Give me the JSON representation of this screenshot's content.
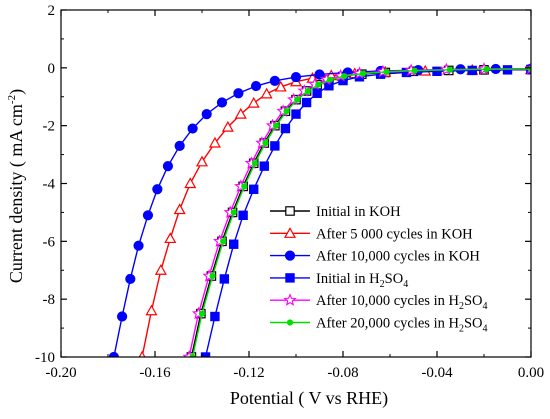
{
  "chart_data": {
    "type": "line",
    "xlabel": "Potential ( V vs RHE)",
    "ylabel": "Current density ( mA cm",
    "ylabel_sup": "-2",
    "ylabel_close": ")",
    "xlim": [
      -0.2,
      0.0
    ],
    "ylim": [
      -10,
      2
    ],
    "x_ticks": [
      -0.2,
      -0.16,
      -0.12,
      -0.08,
      -0.04,
      0.0
    ],
    "x_tick_labels": [
      "-0.20",
      "-0.16",
      "-0.12",
      "-0.08",
      "-0.04",
      "0.00"
    ],
    "y_ticks": [
      2,
      0,
      -2,
      -4,
      -6,
      -8,
      -10
    ],
    "y_tick_labels": [
      "2",
      "0",
      "-2",
      "-4",
      "-6",
      "-8",
      "-10"
    ],
    "grid": false,
    "legend_position": "bottom-right",
    "series": [
      {
        "name": "Initial in KOH",
        "color": "#000000",
        "marker": "open-square",
        "x": [
          -0.1445,
          -0.1405,
          -0.136,
          -0.1315,
          -0.127,
          -0.1225,
          -0.118,
          -0.1135,
          -0.109,
          -0.1045,
          -0.1,
          -0.0955,
          -0.091,
          -0.086,
          -0.08,
          -0.072,
          -0.062,
          -0.05,
          -0.035,
          -0.02,
          0.0
        ],
        "y": [
          -10.0,
          -8.5,
          -7.2,
          -6.0,
          -5.0,
          -4.1,
          -3.3,
          -2.6,
          -2.0,
          -1.5,
          -1.1,
          -0.8,
          -0.58,
          -0.42,
          -0.3,
          -0.22,
          -0.16,
          -0.12,
          -0.09,
          -0.07,
          -0.06
        ]
      },
      {
        "name": "After 5 000 cycles in KOH",
        "color": "#ff0000",
        "marker": "open-triangle",
        "x": [
          -0.1655,
          -0.1615,
          -0.1575,
          -0.1535,
          -0.1495,
          -0.145,
          -0.14,
          -0.1345,
          -0.129,
          -0.1235,
          -0.118,
          -0.1125,
          -0.1065,
          -0.1,
          -0.093,
          -0.085,
          -0.075,
          -0.062,
          -0.045,
          -0.025,
          0.0
        ],
        "y": [
          -10.0,
          -8.4,
          -7.0,
          -5.9,
          -4.9,
          -4.0,
          -3.25,
          -2.6,
          -2.05,
          -1.6,
          -1.22,
          -0.9,
          -0.66,
          -0.48,
          -0.36,
          -0.27,
          -0.2,
          -0.15,
          -0.11,
          -0.08,
          -0.06
        ]
      },
      {
        "name": "After 10,000 cycles in KOH",
        "color": "#0000ff",
        "marker": "filled-circle",
        "x": [
          -0.1775,
          -0.174,
          -0.1705,
          -0.167,
          -0.163,
          -0.159,
          -0.1545,
          -0.1495,
          -0.144,
          -0.138,
          -0.1315,
          -0.1245,
          -0.117,
          -0.109,
          -0.1,
          -0.09,
          -0.078,
          -0.064,
          -0.048,
          -0.03,
          -0.015,
          0.0
        ],
        "y": [
          -10.0,
          -8.6,
          -7.3,
          -6.15,
          -5.1,
          -4.2,
          -3.4,
          -2.7,
          -2.1,
          -1.6,
          -1.2,
          -0.88,
          -0.63,
          -0.45,
          -0.32,
          -0.23,
          -0.16,
          -0.11,
          -0.08,
          -0.05,
          -0.04,
          -0.03
        ]
      },
      {
        "name": "Initial in H2SO4",
        "color": "#0000ff",
        "marker": "filled-square",
        "x": [
          -0.1385,
          -0.1345,
          -0.1305,
          -0.1265,
          -0.1225,
          -0.118,
          -0.1135,
          -0.109,
          -0.1045,
          -0.1,
          -0.0955,
          -0.091,
          -0.086,
          -0.08,
          -0.073,
          -0.064,
          -0.053,
          -0.04,
          -0.025,
          -0.01,
          0.0
        ],
        "y": [
          -10.0,
          -8.6,
          -7.3,
          -6.1,
          -5.1,
          -4.2,
          -3.4,
          -2.7,
          -2.1,
          -1.6,
          -1.2,
          -0.88,
          -0.62,
          -0.44,
          -0.31,
          -0.22,
          -0.16,
          -0.12,
          -0.09,
          -0.07,
          -0.06
        ]
      },
      {
        "name": "After 10,000 cycles in H2SO4",
        "color": "#ff00ff",
        "marker": "open-star",
        "x": [
          -0.1455,
          -0.1415,
          -0.137,
          -0.1325,
          -0.128,
          -0.1235,
          -0.119,
          -0.1145,
          -0.11,
          -0.1055,
          -0.101,
          -0.0965,
          -0.092,
          -0.087,
          -0.081,
          -0.073,
          -0.063,
          -0.051,
          -0.036,
          -0.02,
          0.0
        ],
        "y": [
          -10.0,
          -8.5,
          -7.2,
          -6.0,
          -5.0,
          -4.1,
          -3.3,
          -2.6,
          -2.0,
          -1.5,
          -1.1,
          -0.8,
          -0.57,
          -0.4,
          -0.28,
          -0.19,
          -0.13,
          -0.09,
          -0.06,
          -0.04,
          -0.03
        ]
      },
      {
        "name": "After 20,000 cycles in H2SO4",
        "color": "#00e000",
        "marker": "filled-small-circle",
        "x": [
          -0.144,
          -0.14,
          -0.1355,
          -0.131,
          -0.1265,
          -0.122,
          -0.1175,
          -0.113,
          -0.1085,
          -0.104,
          -0.0995,
          -0.095,
          -0.0905,
          -0.0855,
          -0.0795,
          -0.0715,
          -0.0615,
          -0.0495,
          -0.0345,
          -0.019,
          0.0
        ],
        "y": [
          -10.0,
          -8.5,
          -7.2,
          -6.0,
          -5.0,
          -4.1,
          -3.3,
          -2.6,
          -2.0,
          -1.5,
          -1.1,
          -0.81,
          -0.58,
          -0.41,
          -0.29,
          -0.2,
          -0.14,
          -0.1,
          -0.07,
          -0.05,
          -0.04
        ]
      }
    ],
    "legend": [
      {
        "prefix": "Initial in KOH",
        "sub": "",
        "suffix": ""
      },
      {
        "prefix": "After 5 000 cycles in KOH",
        "sub": "",
        "suffix": ""
      },
      {
        "prefix": "After 10,000 cycles in KOH",
        "sub": "",
        "suffix": ""
      },
      {
        "prefix": "Initial in H",
        "sub": "2",
        "suffix": "SO",
        "sub2": "4"
      },
      {
        "prefix": "After 10,000 cycles in H",
        "sub": "2",
        "suffix": "SO",
        "sub2": "4"
      },
      {
        "prefix": "After 20,000 cycles in H",
        "sub": "2",
        "suffix": "SO",
        "sub2": "4"
      }
    ]
  }
}
